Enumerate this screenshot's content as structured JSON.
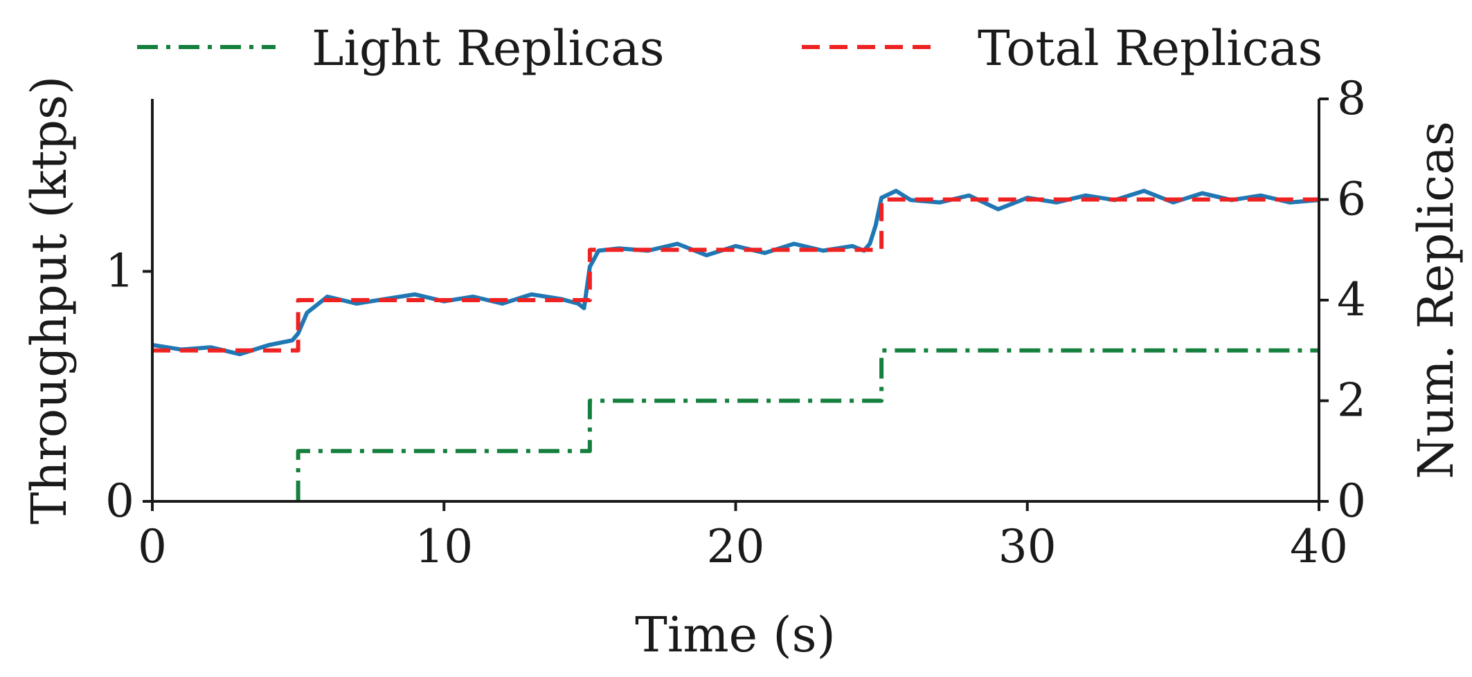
{
  "chart_data": {
    "type": "line",
    "xlabel": "Time (s)",
    "ylabel_left": "Throughput (ktps)",
    "ylabel_right": "Num. Replicas",
    "xlim": [
      0,
      40
    ],
    "ylim_left": [
      0,
      1.75
    ],
    "ylim_right": [
      0,
      8
    ],
    "x_ticks": [
      0,
      10,
      20,
      30,
      40
    ],
    "y_left_ticks": [
      0,
      1
    ],
    "y_right_ticks": [
      0,
      2,
      4,
      6,
      8
    ],
    "grid": false,
    "legend_position": "top",
    "legend": [
      {
        "label": "Light Replicas",
        "series": "light_replicas"
      },
      {
        "label": "Total Replicas",
        "series": "total_replicas"
      }
    ],
    "colors": {
      "throughput": "#1f77b4",
      "light_replicas": "#15803d",
      "total_replicas": "#ef2222",
      "axis": "#1a1a1a"
    },
    "series": [
      {
        "id": "throughput",
        "axis": "left",
        "style": "solid",
        "x": [
          0,
          1,
          2,
          3,
          4,
          4.8,
          5,
          5.3,
          6,
          7,
          8,
          9,
          10,
          11,
          12,
          13,
          14,
          14.6,
          14.8,
          15,
          15.3,
          16,
          17,
          18,
          19,
          20,
          21,
          22,
          23,
          24,
          24.4,
          24.6,
          24.8,
          25,
          25.5,
          26,
          27,
          28,
          29,
          30,
          31,
          32,
          33,
          34,
          35,
          36,
          37,
          38,
          39,
          40
        ],
        "y": [
          0.68,
          0.66,
          0.67,
          0.64,
          0.68,
          0.7,
          0.73,
          0.82,
          0.89,
          0.86,
          0.88,
          0.9,
          0.87,
          0.89,
          0.86,
          0.9,
          0.88,
          0.86,
          0.84,
          1.02,
          1.09,
          1.1,
          1.09,
          1.12,
          1.07,
          1.11,
          1.08,
          1.12,
          1.09,
          1.11,
          1.09,
          1.12,
          1.2,
          1.32,
          1.35,
          1.31,
          1.3,
          1.33,
          1.27,
          1.32,
          1.3,
          1.33,
          1.31,
          1.35,
          1.3,
          1.34,
          1.31,
          1.33,
          1.3,
          1.31
        ]
      },
      {
        "id": "total_replicas",
        "name": "Total Replicas",
        "axis": "right",
        "style": "dashed",
        "step": true,
        "x": [
          0,
          5,
          15,
          25,
          40
        ],
        "y": [
          3,
          4,
          5,
          6,
          6
        ]
      },
      {
        "id": "light_replicas",
        "name": "Light Replicas",
        "axis": "right",
        "style": "dashdot",
        "step": true,
        "x": [
          5,
          5,
          15,
          25,
          40
        ],
        "y": [
          0,
          1,
          2,
          3,
          3
        ]
      }
    ]
  }
}
